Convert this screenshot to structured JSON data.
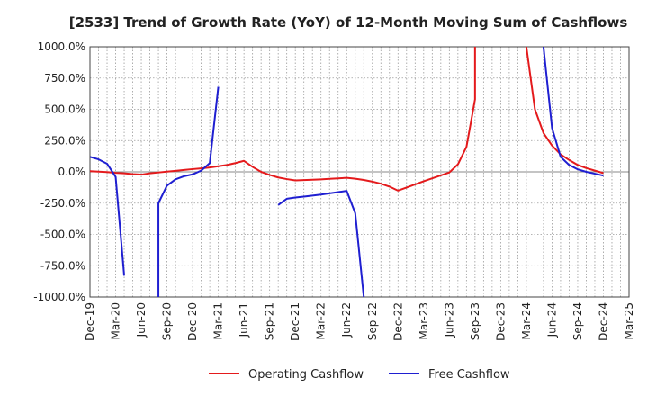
{
  "chart_data": {
    "type": "line",
    "title": "[2533]  Trend of Growth Rate (YoY) of 12-Month Moving Sum of Cashflows",
    "xlabel": "",
    "ylabel": "",
    "ylim": [
      -1000,
      1000
    ],
    "yticks": [
      1000,
      750,
      500,
      250,
      0,
      -250,
      -500,
      -750,
      -1000
    ],
    "ytick_labels": [
      "1000.0%",
      "750.0%",
      "500.0%",
      "250.0%",
      "0.0%",
      "-250.0%",
      "-500.0%",
      "-750.0%",
      "-1000.0%"
    ],
    "xlim": [
      "2019-12",
      "2025-03"
    ],
    "xticks": [
      "2019-12",
      "2020-03",
      "2020-06",
      "2020-09",
      "2020-12",
      "2021-03",
      "2021-06",
      "2021-09",
      "2021-12",
      "2022-03",
      "2022-06",
      "2022-09",
      "2022-12",
      "2023-03",
      "2023-06",
      "2023-09",
      "2023-12",
      "2024-03",
      "2024-06",
      "2024-09",
      "2024-12",
      "2025-03"
    ],
    "xtick_labels": [
      "Dec-19",
      "Mar-20",
      "Jun-20",
      "Sep-20",
      "Dec-20",
      "Mar-21",
      "Jun-21",
      "Sep-21",
      "Dec-21",
      "Mar-22",
      "Jun-22",
      "Sep-22",
      "Dec-22",
      "Mar-23",
      "Jun-23",
      "Sep-23",
      "Dec-23",
      "Mar-24",
      "Jun-24",
      "Sep-24",
      "Dec-24",
      "Mar-25"
    ],
    "grid": true,
    "legend_position": "bottom",
    "series": [
      {
        "name": "Operating Cashflow",
        "color": "#e41a1c",
        "points": [
          [
            "2019-12",
            5
          ],
          [
            "2020-01",
            2
          ],
          [
            "2020-02",
            -2
          ],
          [
            "2020-03",
            -8
          ],
          [
            "2020-04",
            -12
          ],
          [
            "2020-05",
            -18
          ],
          [
            "2020-06",
            -22
          ],
          [
            "2020-07",
            -12
          ],
          [
            "2020-08",
            -5
          ],
          [
            "2020-09",
            2
          ],
          [
            "2020-10",
            8
          ],
          [
            "2020-11",
            15
          ],
          [
            "2020-12",
            22
          ],
          [
            "2021-01",
            28
          ],
          [
            "2021-02",
            35
          ],
          [
            "2021-03",
            45
          ],
          [
            "2021-04",
            55
          ],
          [
            "2021-05",
            70
          ],
          [
            "2021-06",
            88
          ],
          [
            "2021-07",
            40
          ],
          [
            "2021-08",
            0
          ],
          [
            "2021-09",
            -25
          ],
          [
            "2021-10",
            -45
          ],
          [
            "2021-11",
            -58
          ],
          [
            "2021-12",
            -68
          ],
          [
            "2022-01",
            -66
          ],
          [
            "2022-02",
            -63
          ],
          [
            "2022-03",
            -60
          ],
          [
            "2022-04",
            -56
          ],
          [
            "2022-05",
            -52
          ],
          [
            "2022-06",
            -48
          ],
          [
            "2022-07",
            -55
          ],
          [
            "2022-08",
            -65
          ],
          [
            "2022-09",
            -78
          ],
          [
            "2022-10",
            -95
          ],
          [
            "2022-11",
            -118
          ],
          [
            "2022-12",
            -150
          ],
          [
            "2023-01",
            -125
          ],
          [
            "2023-02",
            -100
          ],
          [
            "2023-03",
            -75
          ],
          [
            "2023-04",
            -52
          ],
          [
            "2023-05",
            -28
          ],
          [
            "2023-06",
            -5
          ],
          [
            "2023-07",
            60
          ],
          [
            "2023-08",
            200
          ],
          [
            "2023-09",
            580
          ],
          [
            "2023-09",
            1000
          ],
          null,
          [
            "2024-03",
            1000
          ],
          [
            "2024-04",
            500
          ],
          [
            "2024-05",
            310
          ],
          [
            "2024-06",
            210
          ],
          [
            "2024-07",
            140
          ],
          [
            "2024-08",
            95
          ],
          [
            "2024-09",
            55
          ],
          [
            "2024-10",
            30
          ],
          [
            "2024-11",
            10
          ],
          [
            "2024-12",
            -10
          ]
        ]
      },
      {
        "name": "Free Cashflow",
        "color": "#1f1fd1",
        "points": [
          [
            "2019-12",
            120
          ],
          [
            "2020-01",
            100
          ],
          [
            "2020-02",
            65
          ],
          [
            "2020-03",
            -40
          ],
          [
            "2020-04",
            -830
          ],
          null,
          [
            "2020-08",
            -1000
          ],
          [
            "2020-08",
            -250
          ],
          [
            "2020-09",
            -110
          ],
          [
            "2020-10",
            -60
          ],
          [
            "2020-11",
            -35
          ],
          [
            "2020-12",
            -20
          ],
          [
            "2021-01",
            10
          ],
          [
            "2021-02",
            70
          ],
          [
            "2021-03",
            680
          ],
          null,
          [
            "2021-10",
            -265
          ],
          [
            "2021-11",
            -215
          ],
          [
            "2021-12",
            -205
          ],
          [
            "2022-01",
            -198
          ],
          [
            "2022-02",
            -190
          ],
          [
            "2022-03",
            -182
          ],
          [
            "2022-04",
            -172
          ],
          [
            "2022-05",
            -162
          ],
          [
            "2022-06",
            -152
          ],
          [
            "2022-07",
            -330
          ],
          [
            "2022-08",
            -1000
          ],
          null,
          [
            "2024-05",
            1000
          ],
          [
            "2024-06",
            350
          ],
          [
            "2024-07",
            120
          ],
          [
            "2024-08",
            55
          ],
          [
            "2024-09",
            20
          ],
          [
            "2024-10",
            0
          ],
          [
            "2024-11",
            -15
          ],
          [
            "2024-12",
            -30
          ]
        ]
      }
    ]
  }
}
